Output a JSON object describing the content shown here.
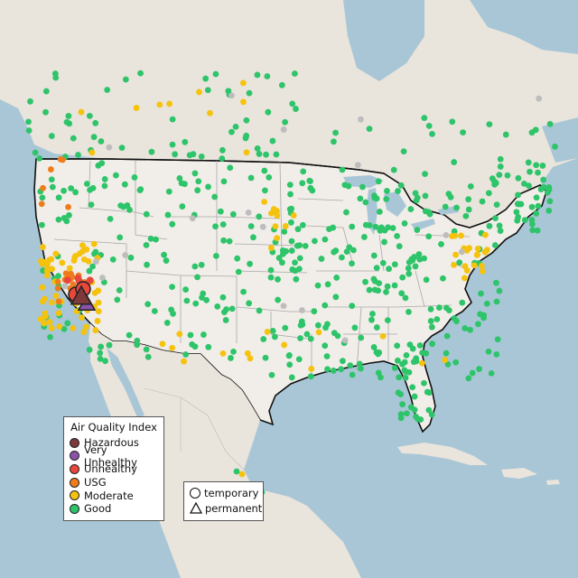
{
  "legend_aqi": {
    "title": "Air Quality Index",
    "items": [
      {
        "label": "Hazardous",
        "color": "#7e3a3a"
      },
      {
        "label": "Very Unhealthy",
        "color": "#8b53a8"
      },
      {
        "label": "Unhealthy",
        "color": "#e8483c"
      },
      {
        "label": "USG",
        "color": "#ee7c1a"
      },
      {
        "label": "Moderate",
        "color": "#f5c20c"
      },
      {
        "label": "Good",
        "color": "#2ec46a"
      }
    ]
  },
  "legend_type": {
    "items": [
      {
        "label": "temporary",
        "shape": "circle"
      },
      {
        "label": "permanent",
        "shape": "triangle"
      }
    ]
  },
  "colors": {
    "water": "#a9c6d6",
    "land": "#ebe6df",
    "us_land": "#f1ede8",
    "border": "#111111",
    "state_line": "#aaaaaa"
  }
}
